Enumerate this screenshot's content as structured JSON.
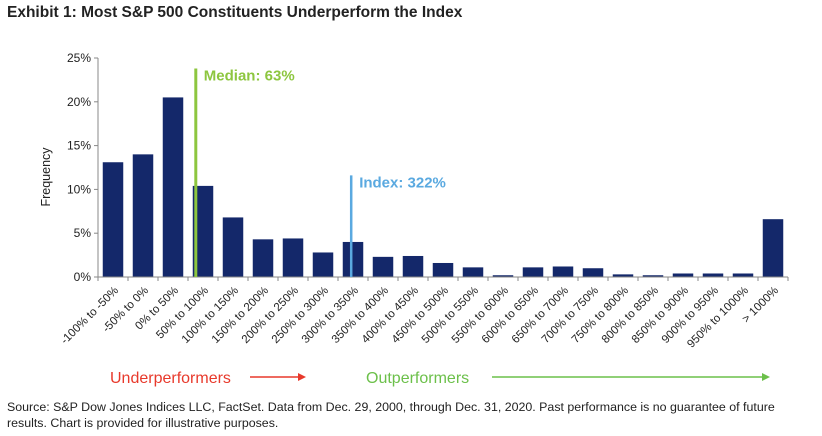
{
  "title": "Exhibit 1: Most S&P 500 Constituents Underperform the Index",
  "source": "Source: S&P Dow Jones Indices LLC, FactSet. Data from Dec. 29, 2000, through Dec. 31, 2020. Past performance is no guarantee of future results. Chart is provided for illustrative purposes.",
  "underperformers_label": "Underperformers",
  "outperformers_label": "Outperformers",
  "colors": {
    "bar": "#14286a",
    "median": "#8dc63f",
    "index": "#5aa9e0",
    "under_arrow": "#e8392b",
    "out_arrow": "#6cc04a",
    "axis": "#888888"
  },
  "chart_data": {
    "type": "bar",
    "ylabel": "Frequency",
    "xlabel": "",
    "ylim": [
      0,
      25
    ],
    "yticks": [
      "0%",
      "5%",
      "10%",
      "15%",
      "20%",
      "25%"
    ],
    "grid": false,
    "categories": [
      "-100% to -50%",
      "-50% to 0%",
      "0% to 50%",
      "50% to 100%",
      "100% to 150%",
      "150% to 200%",
      "200% to 250%",
      "250% to 300%",
      "300% to 350%",
      "350% to 400%",
      "400% to 450%",
      "450% to 500%",
      "500% to 550%",
      "550% to 600%",
      "600% to 650%",
      "650% to 700%",
      "700% to 750%",
      "750% to 800%",
      "800% to 850%",
      "850% to 900%",
      "900% to 950%",
      "950% to 1000%",
      "> 1000%"
    ],
    "values": [
      13.1,
      14.0,
      20.5,
      10.4,
      6.8,
      4.3,
      4.4,
      2.8,
      4.0,
      2.3,
      2.4,
      1.6,
      1.1,
      0.2,
      1.1,
      1.2,
      1.0,
      0.3,
      0.2,
      0.4,
      0.4,
      0.4,
      6.6
    ],
    "annotations": [
      {
        "label": "Median: 63%",
        "x": 63,
        "top": 23.8
      },
      {
        "label": "Index: 322%",
        "x": 322,
        "top": 11.6
      }
    ]
  }
}
